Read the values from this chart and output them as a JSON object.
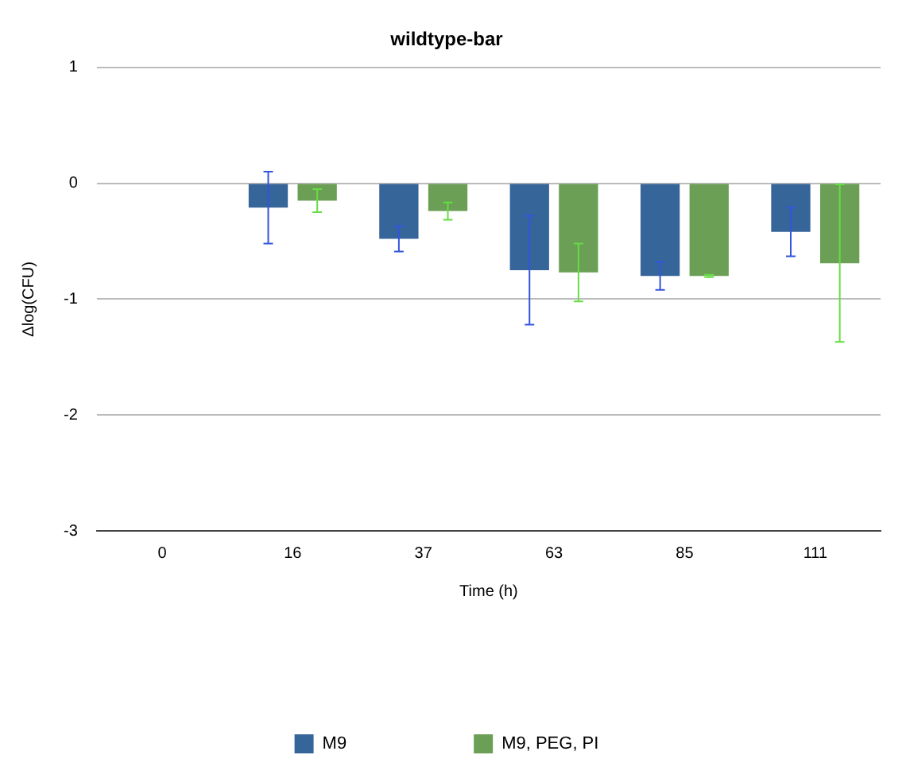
{
  "chart_data": {
    "type": "bar",
    "title": "wildtype-bar",
    "xlabel": "Time (h)",
    "ylabel": "Δlog(CFU)",
    "categories": [
      "0",
      "16",
      "37",
      "63",
      "85",
      "111"
    ],
    "series": [
      {
        "name": "M9",
        "color": "#36659a",
        "values": [
          null,
          -0.21,
          -0.48,
          -0.75,
          -0.8,
          -0.42
        ],
        "errors": [
          null,
          0.31,
          0.11,
          0.47,
          0.12,
          0.21
        ]
      },
      {
        "name": "M9, PEG, PI",
        "color": "#6a9f55",
        "values": [
          null,
          -0.15,
          -0.24,
          -0.77,
          -0.8,
          -0.69
        ],
        "errors": [
          null,
          0.1,
          0.075,
          0.25,
          0.01,
          0.68
        ]
      }
    ],
    "ylim": [
      -3,
      1
    ],
    "yticks": [
      -3,
      -2,
      -1,
      0,
      1
    ],
    "grid": "y",
    "legend": "bottom"
  }
}
